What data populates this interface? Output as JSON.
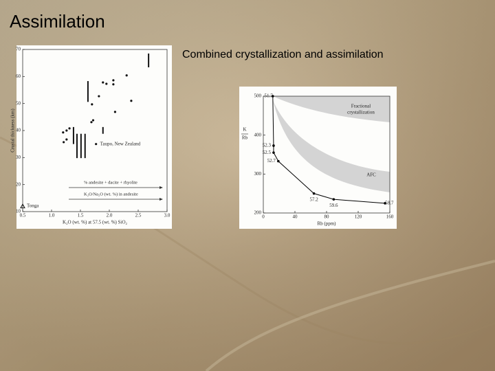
{
  "slide": {
    "title": "Assimilation",
    "caption": "Combined crystallization and assimilation"
  },
  "chart_data": [
    {
      "type": "scatter",
      "xlabel": "K₂O (wt. %) at 57.5 (wt. %) SiO₂",
      "ylabel": "Crustal thickness (km)",
      "xlim": [
        0.5,
        3.0
      ],
      "ylim": [
        10,
        70
      ],
      "xticks": [
        0.5,
        {
          "value": 1,
          "label": "1.0"
        },
        1.5,
        {
          "value": 2,
          "label": "2.0"
        },
        2.5,
        {
          "value": 3,
          "label": "3.0"
        }
      ],
      "yticks": [
        10,
        20,
        30,
        40,
        50,
        60,
        70
      ],
      "series": [
        {
          "color": "#111111",
          "marker": "circle",
          "x": [
            1.2,
            1.26,
            1.21,
            1.26,
            1.31,
            1.89,
            1.95,
            2.07,
            2.07,
            2.3,
            1.82,
            1.7,
            1.72,
            1.69,
            2.1,
            2.38
          ],
          "values": [
            39.3,
            40,
            35.7,
            36.7,
            40.8,
            57.8,
            57.3,
            58.6,
            57.1,
            60.4,
            52.7,
            49.7,
            43.8,
            43.1,
            46.9,
            51
          ]
        },
        {
          "name": "Taupo, New Zealand",
          "color": "#111111",
          "marker": "circle",
          "x": [
            1.77
          ],
          "values": [
            35
          ]
        },
        {
          "name": "Tonga",
          "color": "#111111",
          "marker": "triangle",
          "x": [
            0.5
          ],
          "values": [
            12
          ]
        }
      ],
      "ranges": {
        "color": "#111111",
        "x": [
          1.63,
          2.68,
          1.89,
          1.44,
          1.51,
          1.58,
          1.38
        ],
        "low": [
          50.6,
          63.4,
          38.8,
          29.8,
          29.8,
          29.8,
          35
        ],
        "high": [
          58.3,
          68.5,
          41.3,
          38.8,
          38.8,
          38.8,
          41.3
        ]
      },
      "annotations": [
        "% andesite + dacite + rhyolite",
        "K₂O/Na₂O (wt. %) in andesite"
      ]
    },
    {
      "type": "line",
      "xlabel": "Rb (ppm)",
      "ylabel": {
        "numerator": "K",
        "denominator": "Rb"
      },
      "xlim": [
        0,
        160
      ],
      "ylim": [
        200,
        500
      ],
      "xticks": [
        0,
        40,
        80,
        120,
        160
      ],
      "yticks": [
        200,
        300,
        400,
        500
      ],
      "series": [
        {
          "color": "#000000",
          "x": [
            12,
            13,
            13,
            19,
            64,
            89,
            154
          ],
          "values": [
            500,
            373,
            355,
            333,
            250,
            235,
            225
          ],
          "point_labels": [
            "51.7",
            "52.3",
            "52.5",
            "52.7",
            "57.2",
            "59.6",
            "58.7"
          ]
        }
      ],
      "annotations": [
        "Fractional",
        "crystallization",
        "AFC"
      ]
    }
  ]
}
